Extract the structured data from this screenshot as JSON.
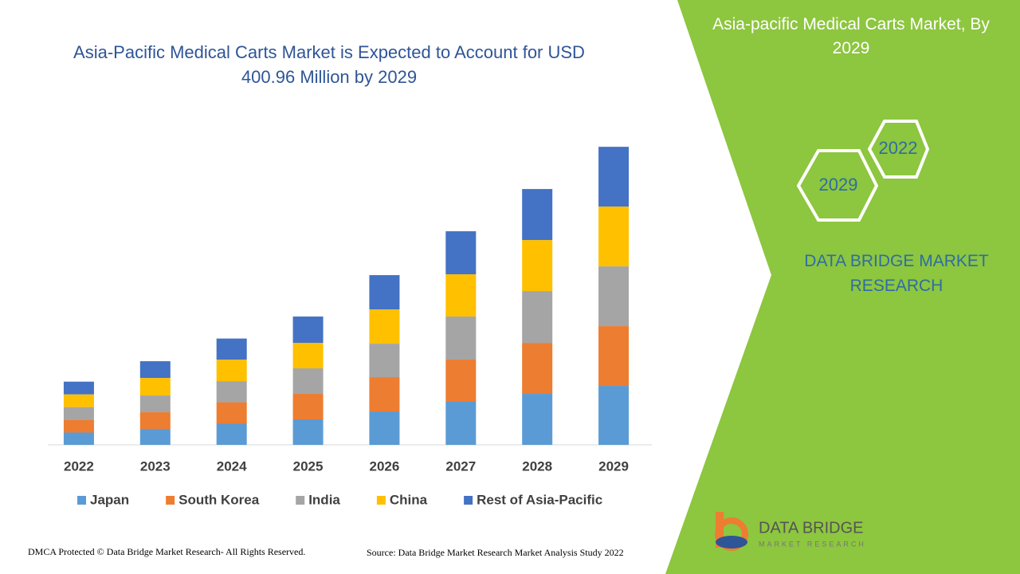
{
  "chart_data": {
    "type": "stacked_bar",
    "title": "Asia-Pacific Medical Carts Market is Expected to Account for USD 400.96 Million by 2029",
    "categories": [
      "2022",
      "2023",
      "2024",
      "2025",
      "2026",
      "2027",
      "2028",
      "2029"
    ],
    "series": [
      {
        "name": "Japan",
        "color": "#5b9bd5",
        "values": [
          16.6,
          21.4,
          28.4,
          34.3,
          45.0,
          57.9,
          68.6,
          79.3
        ]
      },
      {
        "name": "South Korea",
        "color": "#ed7d31",
        "values": [
          17.1,
          22.5,
          28.9,
          34.3,
          46.1,
          56.8,
          68.6,
          80.4
        ]
      },
      {
        "name": "India",
        "color": "#a5a5a5",
        "values": [
          17.1,
          22.5,
          28.4,
          34.3,
          45.0,
          57.9,
          69.7,
          80.4
        ]
      },
      {
        "name": "China",
        "color": "#ffc000",
        "values": [
          17.1,
          23.6,
          28.9,
          34.3,
          46.1,
          56.8,
          68.6,
          80.4
        ]
      },
      {
        "name": "Rest of Asia-Pacific",
        "color": "#4472c4",
        "values": [
          17.1,
          22.5,
          28.4,
          35.4,
          46.1,
          57.9,
          68.6,
          80.4
        ]
      }
    ],
    "ylim": [
      0,
      430
    ],
    "legend": "bottom"
  },
  "sidebar": {
    "title": "Asia-pacific Medical Carts Market, By 2029",
    "hex_labels": [
      "2022",
      "2029"
    ],
    "brand": "DATA BRIDGE MARKET RESEARCH"
  },
  "logo": {
    "name": "DATA BRIDGE",
    "tagline": "MARKET RESEARCH"
  },
  "footer": {
    "rights": "DMCA Protected © Data Bridge Market Research- All Rights Reserved.",
    "source": "Source: Data Bridge Market Research Market Analysis Study 2022"
  }
}
